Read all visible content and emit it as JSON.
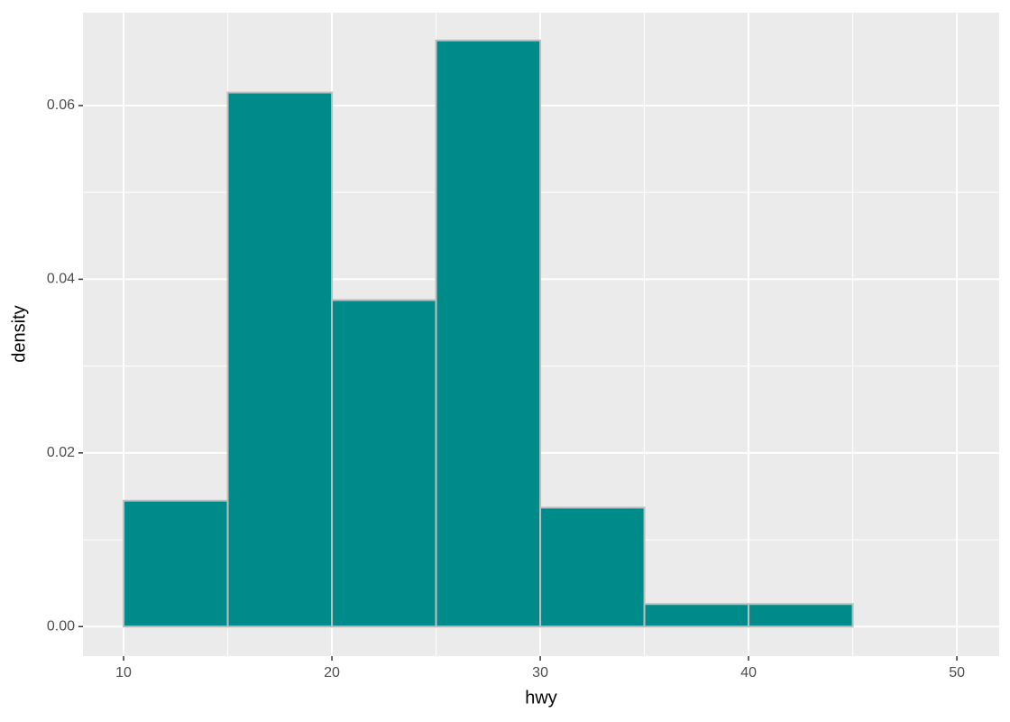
{
  "chart_data": {
    "type": "histogram",
    "x_label": "hwy",
    "y_label": "density",
    "bins": [
      10,
      15,
      20,
      25,
      30,
      35,
      40,
      45,
      50
    ],
    "values": [
      0.0145,
      0.0615,
      0.0376,
      0.0675,
      0.0137,
      0.0026,
      0.0026,
      0
    ],
    "color": "#008b8b",
    "edge_color": "#bebebe",
    "xlim": [
      8.05,
      52.03
    ],
    "ylim": [
      -0.0034,
      0.0707
    ],
    "xticks": [
      10,
      20,
      30,
      40,
      50
    ],
    "yticks": [
      {
        "value": 0,
        "label": "0.00"
      },
      {
        "value": 0.02,
        "label": "0.02"
      },
      {
        "value": 0.04,
        "label": "0.04"
      },
      {
        "value": 0.06,
        "label": "0.06"
      }
    ],
    "xminor": [
      15,
      25,
      35,
      45
    ],
    "yminor": [
      0.01,
      0.03,
      0.05
    ],
    "grid": true
  }
}
